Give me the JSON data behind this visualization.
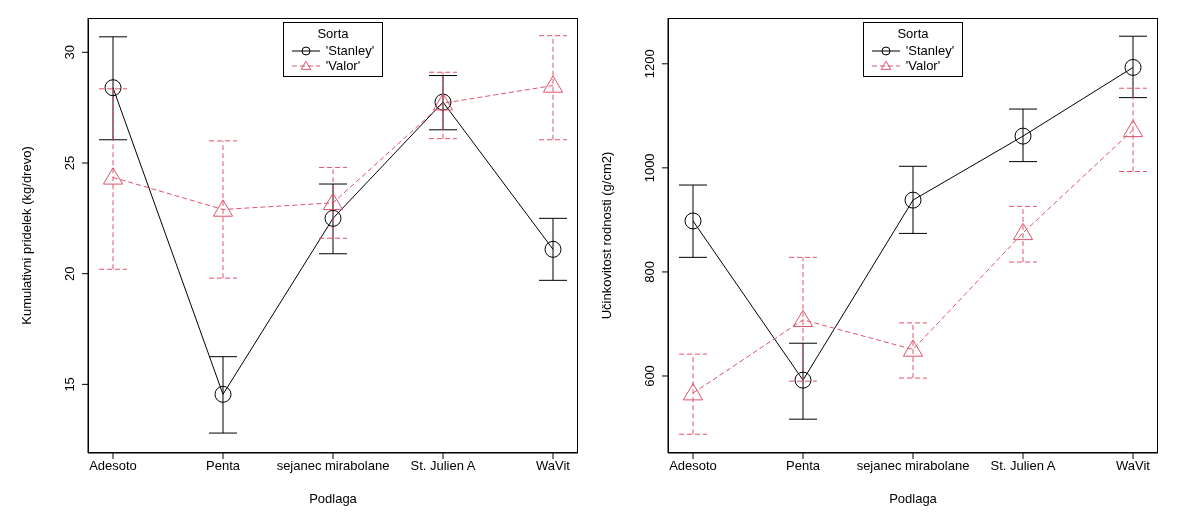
{
  "chart_data": [
    {
      "type": "line",
      "xlabel": "Podlaga",
      "ylabel": "Kumulativni pridelek (kg/drevo)",
      "legend_title": "Sorta",
      "legend": "top",
      "categories": [
        "Adesoto",
        "Penta",
        "sejanec mirabolane",
        "St. Julien A",
        "WaVit"
      ],
      "ylim": [
        11.9,
        31.55
      ],
      "yticks": [
        15,
        20,
        25,
        30
      ],
      "grid": false,
      "series": [
        {
          "name": "'Stanley'",
          "color": "#000000",
          "marker": "circle",
          "line_style": "solid",
          "values": [
            28.4,
            14.55,
            22.5,
            27.75,
            21.1
          ],
          "errors": [
            [
              26.05,
              30.7
            ],
            [
              12.8,
              16.25
            ],
            [
              20.9,
              24.05
            ],
            [
              26.5,
              28.95
            ],
            [
              19.7,
              22.5
            ]
          ]
        },
        {
          "name": "'Valor'",
          "color": "#df536b",
          "marker": "triangle",
          "line_style": "dashed",
          "values": [
            24.35,
            22.9,
            23.2,
            27.7,
            28.5
          ],
          "errors": [
            [
              20.2,
              28.35
            ],
            [
              19.8,
              26.0
            ],
            [
              21.6,
              24.8
            ],
            [
              26.1,
              29.1
            ],
            [
              26.05,
              30.75
            ]
          ]
        }
      ]
    },
    {
      "type": "line",
      "xlabel": "Podlaga",
      "ylabel": "Učinkovitost rodnosti (g/cm2)",
      "legend_title": "Sorta",
      "legend": "top",
      "categories": [
        "Adesoto",
        "Penta",
        "sejanec mirabolane",
        "St. Julien A",
        "WaVit"
      ],
      "ylim": [
        452,
        1288
      ],
      "yticks": [
        600,
        800,
        1000,
        1200
      ],
      "grid": false,
      "series": [
        {
          "name": "'Stanley'",
          "color": "#000000",
          "marker": "circle",
          "line_style": "solid",
          "values": [
            898,
            592,
            938,
            1061,
            1193
          ],
          "errors": [
            [
              828,
              967
            ],
            [
              517,
              663
            ],
            [
              874,
              1003
            ],
            [
              1012,
              1113
            ],
            [
              1135,
              1253
            ]
          ]
        },
        {
          "name": "'Valor'",
          "color": "#df536b",
          "marker": "triangle",
          "line_style": "dashed",
          "values": [
            567,
            708,
            651,
            875,
            1073
          ],
          "errors": [
            [
              488,
              642
            ],
            [
              590,
              828
            ],
            [
              596,
              702
            ],
            [
              819,
              926
            ],
            [
              993,
              1153
            ]
          ]
        }
      ]
    }
  ]
}
